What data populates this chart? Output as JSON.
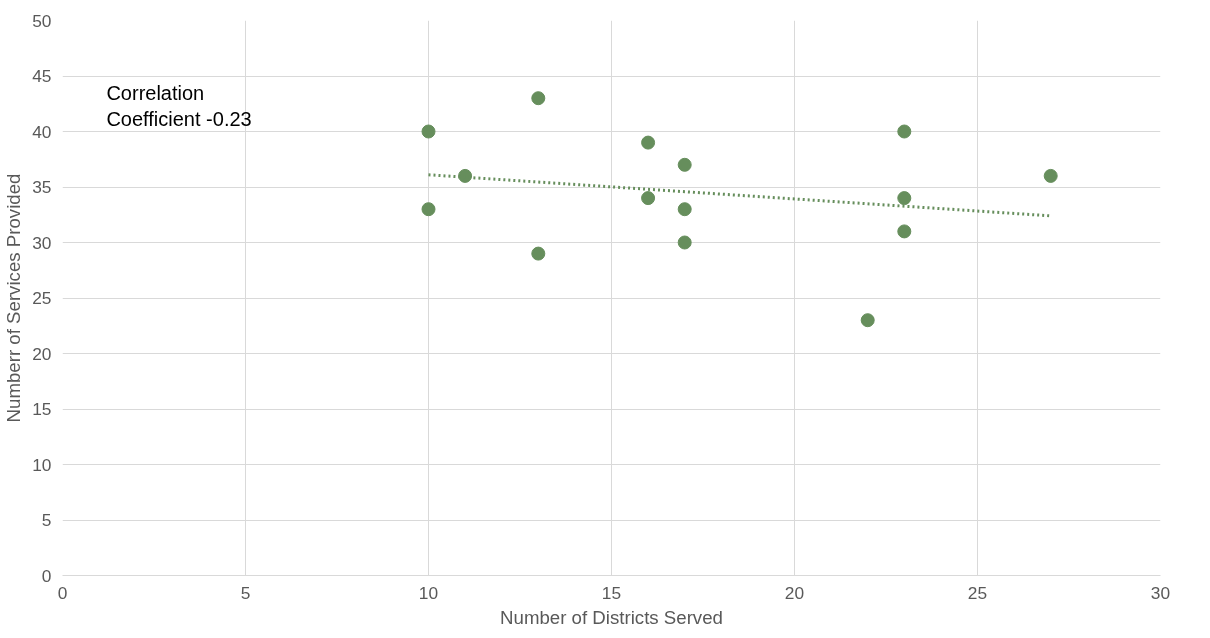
{
  "chart_data": {
    "type": "scatter",
    "xlabel": "Number of Districts Served",
    "ylabel": "Numberr of Services Provided",
    "annotations": [
      "Correlation\nCoefficient -0.23"
    ],
    "xlim": [
      0,
      30
    ],
    "xticks": [
      0,
      5,
      10,
      15,
      20,
      25,
      30
    ],
    "ylim": [
      0,
      50
    ],
    "yticks": [
      0,
      5,
      10,
      15,
      20,
      25,
      30,
      35,
      40,
      45,
      50
    ],
    "grid": true,
    "marker": "circle",
    "series": [
      {
        "color": "#668e5c",
        "x": [
          10,
          10,
          11,
          13,
          13,
          16,
          16,
          17,
          17,
          17,
          22,
          23,
          23,
          23,
          27
        ],
        "values": [
          40,
          33,
          36,
          43,
          29,
          39,
          34,
          37,
          33,
          30,
          23,
          40,
          34,
          31,
          36
        ]
      },
      {
        "type": "line",
        "color": "#668e5c",
        "line_style": "dotted",
        "marker": "none",
        "x": [
          10,
          27
        ],
        "values": [
          36.1,
          32.4
        ]
      }
    ]
  }
}
